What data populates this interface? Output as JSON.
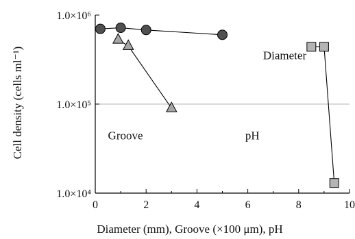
{
  "chart_data": {
    "type": "scatter",
    "title": "",
    "xlabel": "Diameter (mm), Groove (×100 μm), pH",
    "ylabel": "Cell density (cells ml⁻¹)",
    "xlim": [
      0,
      10
    ],
    "ylim": [
      10000,
      1000000
    ],
    "yscale": "log",
    "grid": "horizontal line at 1.0×10^5 only",
    "legend": "none (series labelled by annotations)",
    "x_ticks": [
      "0",
      "2",
      "4",
      "6",
      "8",
      "10"
    ],
    "y_ticks": [
      {
        "value": 10000,
        "label": "1.0×10⁴"
      },
      {
        "value": 100000,
        "label": "1.0×10⁵"
      },
      {
        "value": 1000000,
        "label": "1.0×10⁶"
      }
    ],
    "series": [
      {
        "marker": "circle",
        "color": "#505050",
        "x": [
          0.2,
          1.0,
          2.0,
          5.0
        ],
        "y": [
          700000,
          720000,
          680000,
          600000
        ]
      },
      {
        "marker": "triangle",
        "color": "#a6a6a6",
        "x": [
          0.9,
          1.3,
          3.0
        ],
        "y": [
          530000,
          450000,
          90000
        ]
      },
      {
        "marker": "square",
        "color": "#b4b4b4",
        "x": [
          8.5,
          9.0,
          9.4
        ],
        "y": [
          440000,
          440000,
          13000
        ]
      }
    ],
    "annotations": [
      {
        "text": "Diameter",
        "x": 6.6,
        "y": 320000
      },
      {
        "text": "Groove",
        "x": 0.5,
        "y": 40000
      },
      {
        "text": "pH",
        "x": 5.9,
        "y": 40000
      }
    ]
  }
}
